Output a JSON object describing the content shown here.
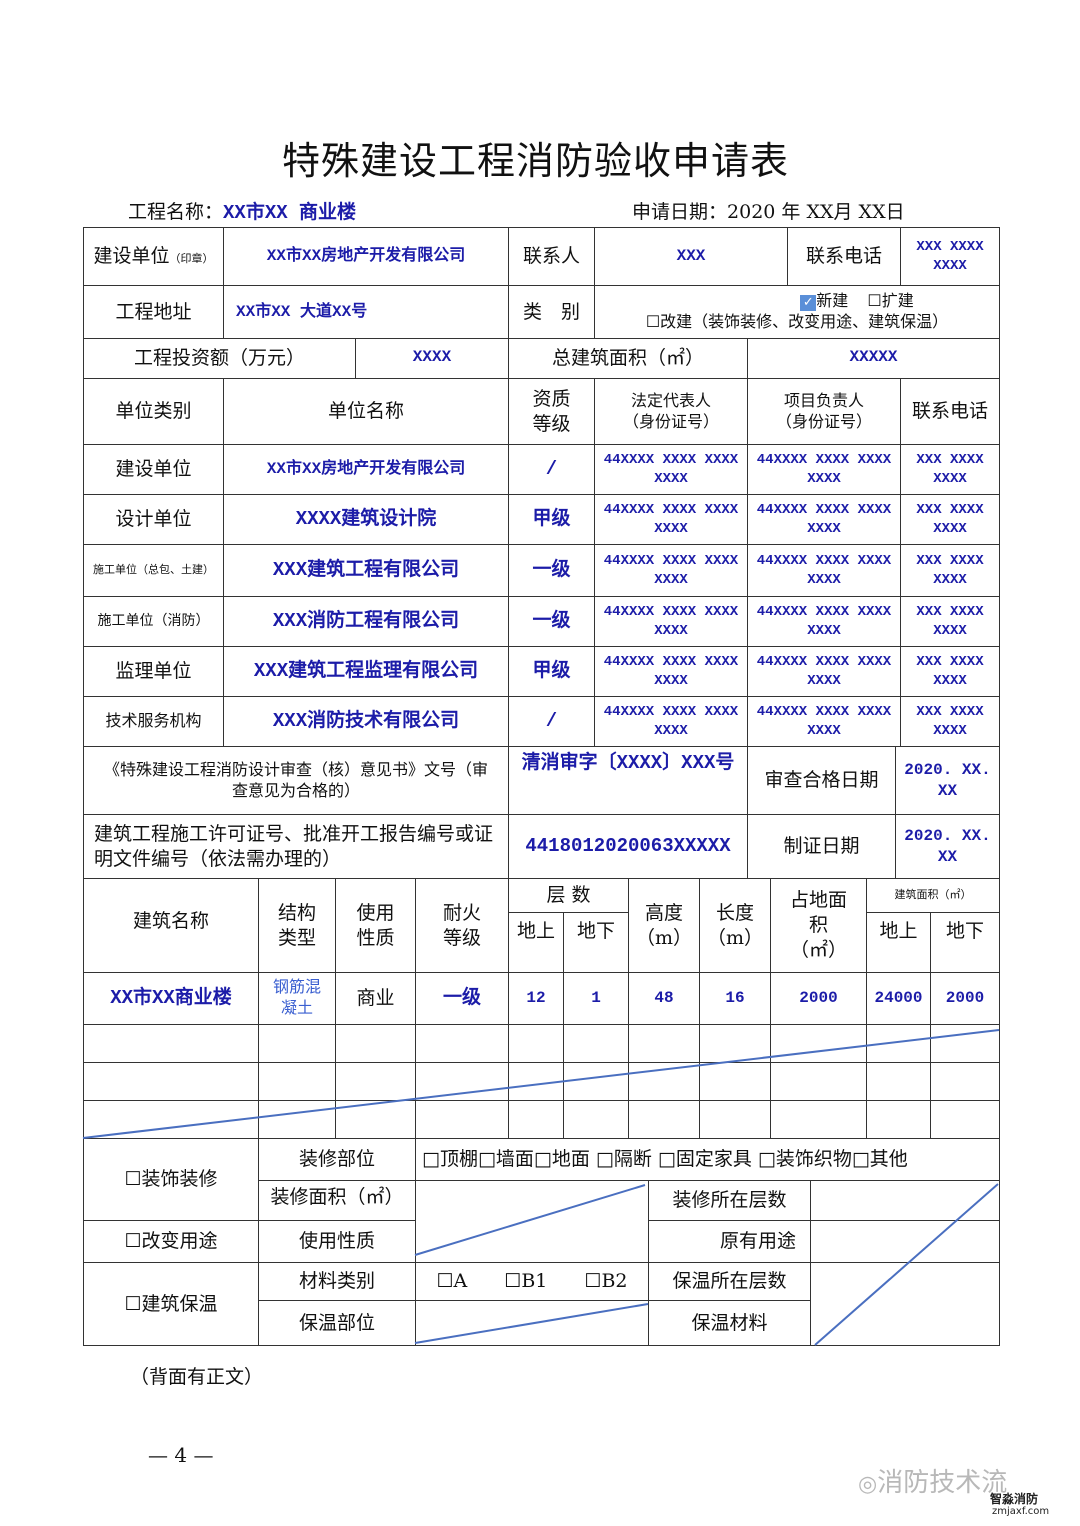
{
  "title": "特殊建设工程消防验收申请表",
  "project_name_label": "工程名称：",
  "project_name": "XX市XX 商业楼",
  "apply_date_label": "申请日期：",
  "apply_date": "2020 年 XX月 XX日",
  "row1": {
    "unit_label": "建设单位",
    "unit_note": "（印章）",
    "unit": "XX市XX房地产开发有限公司",
    "contact_label": "联系人",
    "contact": "XXX",
    "phone_label": "联系电话",
    "phone": "XXX XXXX XXXX"
  },
  "row2": {
    "address_label": "工程地址",
    "address": "XX市XX 大道XX号",
    "category_label": "类　别",
    "opt_new": "新建",
    "opt_expand": "扩建",
    "opt_rebuild": "改建（装饰装修、改变用途、建筑保温）",
    "checked": "新建"
  },
  "row3": {
    "invest_label": "工程投资额（万元）",
    "invest": "XXXX",
    "area_label": "总建筑面积（㎡）",
    "area": "XXXXX"
  },
  "units_header": {
    "type": "单位类别",
    "name": "单位名称",
    "grade": "资质等级",
    "legal": "法定代表人",
    "legal_sub": "（身份证号）",
    "manager": "项目负责人",
    "manager_sub": "（身份证号）",
    "phone": "联系电话"
  },
  "units": [
    {
      "type": "建设单位",
      "name": "XX市XX房地产开发有限公司",
      "grade": "/",
      "legal": "44XXXX XXXX XXXX XXXX",
      "manager": "44XXXX XXXX XXXX XXXX",
      "phone": "XXX XXXX XXXX"
    },
    {
      "type": "设计单位",
      "name": "XXXX建筑设计院",
      "grade": "甲级",
      "legal": "44XXXX XXXX XXXX XXXX",
      "manager": "44XXXX XXXX XXXX XXXX",
      "phone": "XXX XXXX XXXX"
    },
    {
      "type": "施工单位（总包、土建）",
      "name": "XXX建筑工程有限公司",
      "grade": "一级",
      "legal": "44XXXX XXXX XXXX XXXX",
      "manager": "44XXXX XXXX XXXX XXXX",
      "phone": "XXX XXXX XXXX"
    },
    {
      "type": "施工单位（消防）",
      "name": "XXX消防工程有限公司",
      "grade": "一级",
      "legal": "44XXXX XXXX XXXX XXXX",
      "manager": "44XXXX XXXX XXXX XXXX",
      "phone": "XXX XXXX XXXX"
    },
    {
      "type": "监理单位",
      "name": "XXX建筑工程监理有限公司",
      "grade": "甲级",
      "legal": "44XXXX XXXX XXXX XXXX",
      "manager": "44XXXX XXXX XXXX XXXX",
      "phone": "XXX XXXX XXXX"
    },
    {
      "type": "技术服务机构",
      "name": "XXX消防技术有限公司",
      "grade": "/",
      "legal": "44XXXX XXXX XXXX XXXX",
      "manager": "44XXXX XXXX XXXX XXXX",
      "phone": "XXX XXXX XXXX"
    }
  ],
  "review": {
    "label": "《特殊建设工程消防设计审查（核）意见书》文号（审查意见为合格的）",
    "doc_no": "清消审字〔XXXX〕XXX号",
    "date_label": "审查合格日期",
    "date": "2020. XX. XX"
  },
  "permit": {
    "label": "建筑工程施工许可证号、批准开工报告编号或证明文件编号（依法需办理的）",
    "no": "4418012020063XXXXX",
    "date_label": "制证日期",
    "date": "2020. XX. XX"
  },
  "building_header": {
    "name": "建筑名称",
    "structure": "结构类型",
    "usage": "使用性质",
    "fire": "耐火等级",
    "floors": "层 数",
    "floors_above": "地上",
    "floors_below": "地下",
    "height": "高度（m）",
    "length": "长度（m）",
    "footprint": "占地面积（㎡）",
    "area": "建筑面积（㎡）",
    "area_above": "地上",
    "area_below": "地下"
  },
  "building": {
    "name": "XX市XX商业楼",
    "structure": "钢筋混凝土",
    "usage": "商业",
    "fire": "一级",
    "floors_above": "12",
    "floors_below": "1",
    "height": "48",
    "length": "16",
    "footprint": "2000",
    "area_above": "24000",
    "area_below": "2000"
  },
  "renovation": {
    "label": "装饰装修",
    "part_label": "装修部位",
    "parts": "□顶棚□墙面□地面 □隔断 □固定家具 □装饰织物□其他",
    "area_label": "装修面积（㎡）",
    "floors_label": "装修所在层数"
  },
  "change_use": {
    "label": "改变用途",
    "usage_label": "使用性质",
    "original_label": "原有用途"
  },
  "insulation": {
    "label": "建筑保温",
    "material_type_label": "材料类别",
    "opt_a": "A",
    "opt_b1": "B1",
    "opt_b2": "B2",
    "floors_label": "保温所在层数",
    "part_label": "保温部位",
    "material_label": "保温材料"
  },
  "footer": {
    "note": "（背面有正文）",
    "page": "— 4 —"
  },
  "watermark": {
    "text": "消防技术流",
    "brand": "智淼消防",
    "site": "zmjaxf.com"
  }
}
